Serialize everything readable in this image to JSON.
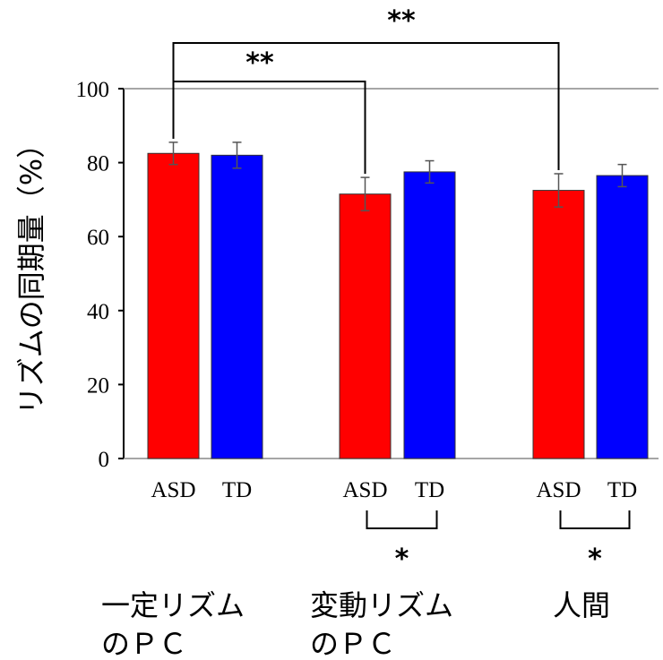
{
  "chart_data": {
    "type": "bar",
    "title": "",
    "ylabel": "リズムの同期量（%）",
    "ylim": [
      0,
      100
    ],
    "yticks": [
      0,
      20,
      40,
      60,
      80,
      100
    ],
    "grid": false,
    "groups": [
      {
        "label_lines": [
          "一定リズム",
          "のＰＣ"
        ],
        "bars": [
          {
            "category": "ASD",
            "value": 82.5,
            "error": 3.0,
            "color": "#ff0000"
          },
          {
            "category": "TD",
            "value": 82.0,
            "error": 3.5,
            "color": "#0000ff"
          }
        ]
      },
      {
        "label_lines": [
          "変動リズム",
          "のＰＣ"
        ],
        "bars": [
          {
            "category": "ASD",
            "value": 71.5,
            "error": 4.5,
            "color": "#ff0000"
          },
          {
            "category": "TD",
            "value": 77.5,
            "error": 3.0,
            "color": "#0000ff"
          }
        ]
      },
      {
        "label_lines": [
          "人間"
        ],
        "bars": [
          {
            "category": "ASD",
            "value": 72.5,
            "error": 4.5,
            "color": "#ff0000"
          },
          {
            "category": "TD",
            "value": 76.5,
            "error": 3.0,
            "color": "#0000ff"
          }
        ]
      }
    ],
    "significance": [
      {
        "from": {
          "group": 0,
          "bar": 0
        },
        "to": {
          "group": 2,
          "bar": 0
        },
        "label": "**",
        "placement": "above"
      },
      {
        "from": {
          "group": 0,
          "bar": 0
        },
        "to": {
          "group": 1,
          "bar": 0
        },
        "label": "**",
        "placement": "above"
      },
      {
        "from": {
          "group": 1,
          "bar": 0
        },
        "to": {
          "group": 1,
          "bar": 1
        },
        "label": "*",
        "placement": "below"
      },
      {
        "from": {
          "group": 2,
          "bar": 0
        },
        "to": {
          "group": 2,
          "bar": 1
        },
        "label": "*",
        "placement": "below"
      }
    ]
  }
}
